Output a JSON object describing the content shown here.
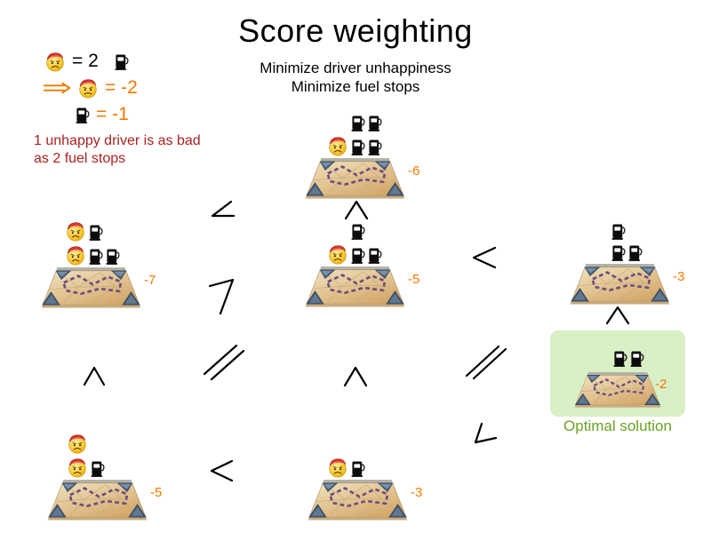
{
  "title": "Score weighting",
  "subtitle": [
    "Minimize driver unhappiness",
    "Minimize fuel stops"
  ],
  "legend": {
    "row1": {
      "lhs_icon": "unhappy-driver-icon",
      "equals_text": "= 2",
      "rhs_icon": "fuel-stop-icon"
    },
    "row2": {
      "arrow_icon": "implies-arrow-icon",
      "lhs_icon": "unhappy-driver-icon",
      "weight_text": "= -2"
    },
    "row3": {
      "lhs_icon": "fuel-stop-icon",
      "weight_text": "= -1"
    },
    "note": [
      "1 unhappy driver is as bad",
      "as 2 fuel stops"
    ]
  },
  "solutions": [
    {
      "name": "top",
      "score": "-6",
      "icon_rows": [
        [
          "spacer",
          "pump",
          "pump"
        ],
        [
          "driver",
          "pump",
          "pump"
        ]
      ]
    },
    {
      "name": "left",
      "score": "-7",
      "icon_rows": [
        [
          "driver",
          "pump"
        ],
        [
          "driver",
          "pump",
          "pump"
        ]
      ]
    },
    {
      "name": "middle",
      "score": "-5",
      "icon_rows": [
        [
          "spacer",
          "pump"
        ],
        [
          "driver",
          "pump",
          "pump"
        ]
      ]
    },
    {
      "name": "right",
      "score": "-3",
      "icon_rows": [
        [
          "pump"
        ],
        [
          "pump",
          "pump"
        ]
      ]
    },
    {
      "name": "optimal",
      "score": "-2",
      "icon_rows": [
        [
          "pump",
          "pump"
        ]
      ],
      "caption": "Optimal solution"
    },
    {
      "name": "bottom-left",
      "score": "-5",
      "icon_rows": [
        [
          "driver"
        ],
        [
          "driver",
          "pump"
        ]
      ]
    },
    {
      "name": "bottom-middle",
      "score": "-3",
      "icon_rows": [
        [
          "driver",
          "pump"
        ]
      ]
    }
  ],
  "comparators": [
    {
      "name": "left-vs-top",
      "glyph": "<",
      "orientation": "diagonal-up-right"
    },
    {
      "name": "middle-vs-top",
      "glyph": "<",
      "orientation": "caret-up"
    },
    {
      "name": "left-vs-middle",
      "glyph": "<",
      "orientation": "diagonal-down-left"
    },
    {
      "name": "middle-vs-right",
      "glyph": "<",
      "orientation": "horizontal"
    },
    {
      "name": "right-vs-optimal",
      "glyph": "<",
      "orientation": "caret-up"
    },
    {
      "name": "bottom-left-vs-left",
      "glyph": "<",
      "orientation": "caret-up"
    },
    {
      "name": "bottom-left-vs-middle",
      "glyph": "=",
      "orientation": "diagonal-parallel"
    },
    {
      "name": "bottom-middle-vs-middle",
      "glyph": "<",
      "orientation": "caret-up"
    },
    {
      "name": "bottom-middle-vs-right",
      "glyph": "=",
      "orientation": "diagonal-parallel"
    },
    {
      "name": "bottom-middle-vs-optimal",
      "glyph": "<",
      "orientation": "diagonal-up-right"
    },
    {
      "name": "bottom-left-vs-bottom-middle",
      "glyph": "<",
      "orientation": "horizontal"
    }
  ],
  "colors": {
    "score_orange": "#f57900",
    "note_red": "#ad1f1f",
    "optimal_bg_green": "#d9efc5",
    "optimal_text_green": "#69a322",
    "route_purple": "#6e4f7d",
    "map_tan": "#e2c290",
    "map_corner_blue": "#4d6480"
  }
}
